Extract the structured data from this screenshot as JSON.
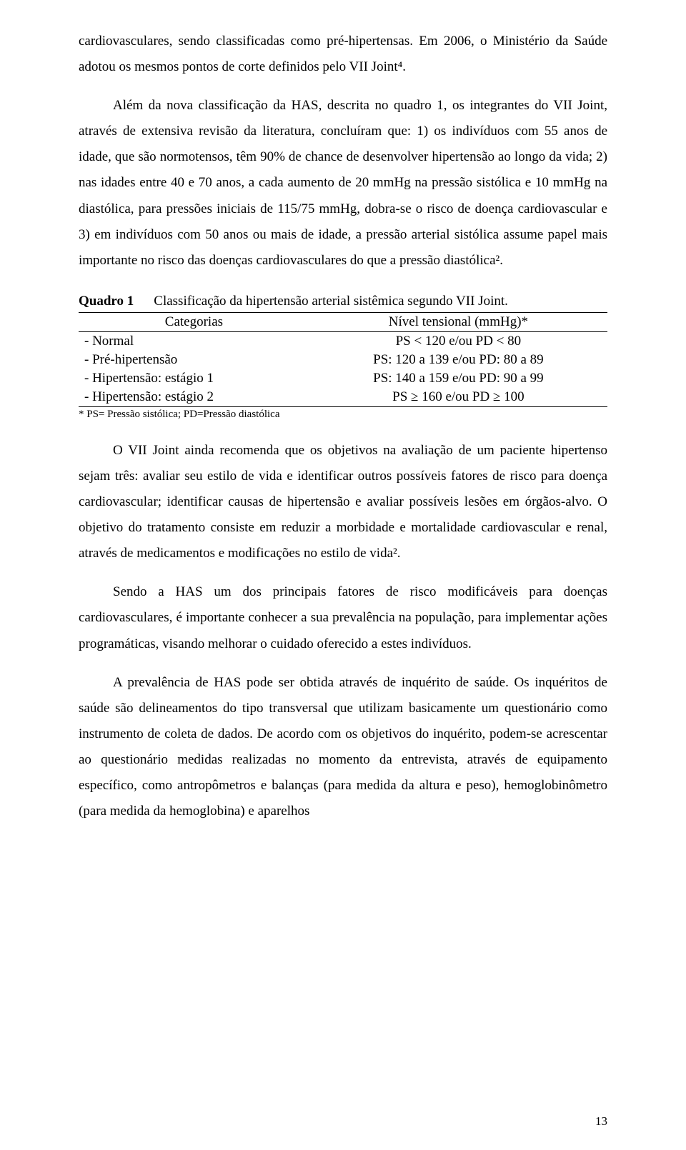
{
  "paragraphs": {
    "p1": "cardiovasculares, sendo classificadas como pré-hipertensas. Em 2006, o Ministério da Saúde adotou os mesmos pontos de corte definidos pelo VII Joint⁴.",
    "p2": "Além da nova classificação da HAS, descrita no quadro 1, os integrantes do VII Joint, através de extensiva revisão da literatura, concluíram que: 1) os indivíduos com 55 anos de idade, que são normotensos, têm 90% de chance de desenvolver hipertensão ao longo da vida; 2) nas idades entre 40 e 70 anos, a cada aumento de 20 mmHg na pressão sistólica e 10 mmHg na diastólica, para pressões iniciais de 115/75 mmHg, dobra-se o risco de doença cardiovascular e 3) em indivíduos com 50 anos ou mais de idade, a pressão arterial sistólica assume papel mais importante no risco das doenças cardiovasculares do que a pressão diastólica².",
    "p3": "O VII Joint ainda recomenda que os objetivos na avaliação de um paciente hipertenso sejam três: avaliar seu estilo de vida e identificar outros possíveis fatores de risco para doença cardiovascular; identificar causas de hipertensão e avaliar possíveis lesões em órgãos-alvo. O objetivo do tratamento consiste em reduzir a morbidade e mortalidade cardiovascular e renal, através de medicamentos e modificações no estilo de vida².",
    "p4": "Sendo a HAS um dos principais fatores de risco modificáveis para doenças cardiovasculares, é importante conhecer a sua prevalência na população, para implementar ações programáticas, visando melhorar o cuidado oferecido a estes indivíduos.",
    "p5": "A prevalência de HAS pode ser obtida através de inquérito de saúde. Os inquéritos de saúde são delineamentos do tipo transversal que utilizam basicamente um questionário como instrumento de coleta de dados. De acordo com os objetivos do inquérito, podem-se acrescentar ao questionário medidas realizadas no momento da entrevista, através de equipamento específico, como antropômetros e balanças (para medida da altura e peso), hemoglobinômetro (para medida da hemoglobina) e aparelhos"
  },
  "table": {
    "label": "Quadro 1",
    "caption": "Classificação da hipertensão arterial sistêmica segundo VII Joint.",
    "headers": {
      "col1": "Categorias",
      "col2": "Nível tensional (mmHg)*"
    },
    "rows": [
      {
        "cat": "- Normal",
        "val": "PS < 120 e/ou PD < 80"
      },
      {
        "cat": "- Pré-hipertensão",
        "val": "PS: 120 a 139 e/ou PD: 80 a 89"
      },
      {
        "cat": "- Hipertensão: estágio 1",
        "val": "PS: 140 a 159 e/ou PD: 90 a 99"
      },
      {
        "cat": "- Hipertensão: estágio 2",
        "val": "PS ≥ 160 e/ou PD ≥ 100"
      }
    ],
    "footnote": "* PS= Pressão sistólica; PD=Pressão diastólica"
  },
  "page_number": "13"
}
